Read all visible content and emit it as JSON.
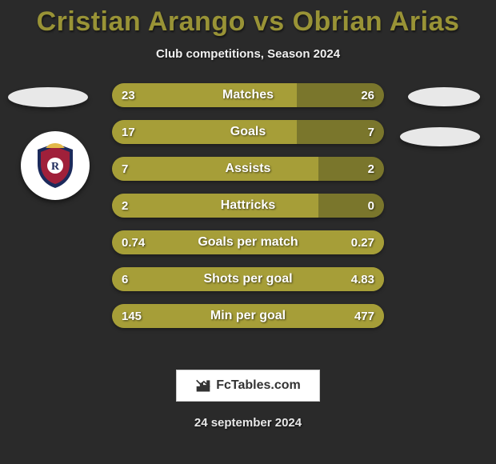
{
  "title": "Cristian Arango vs Obrian Arias",
  "subtitle": "Club competitions, Season 2024",
  "date": "24 september 2024",
  "brand": "FcTables.com",
  "colors": {
    "background": "#2a2a2a",
    "bar_fill": "#a69e38",
    "bar_base": "#7a762c",
    "title": "#999336",
    "text": "#ffffff"
  },
  "bars": [
    {
      "label": "Matches",
      "left": "23",
      "right": "26",
      "fill_pct": 68
    },
    {
      "label": "Goals",
      "left": "17",
      "right": "7",
      "fill_pct": 68
    },
    {
      "label": "Assists",
      "left": "7",
      "right": "2",
      "fill_pct": 76
    },
    {
      "label": "Hattricks",
      "left": "2",
      "right": "0",
      "fill_pct": 76
    },
    {
      "label": "Goals per match",
      "left": "0.74",
      "right": "0.27",
      "fill_pct": 100
    },
    {
      "label": "Shots per goal",
      "left": "6",
      "right": "4.83",
      "fill_pct": 100
    },
    {
      "label": "Min per goal",
      "left": "145",
      "right": "477",
      "fill_pct": 100
    }
  ]
}
